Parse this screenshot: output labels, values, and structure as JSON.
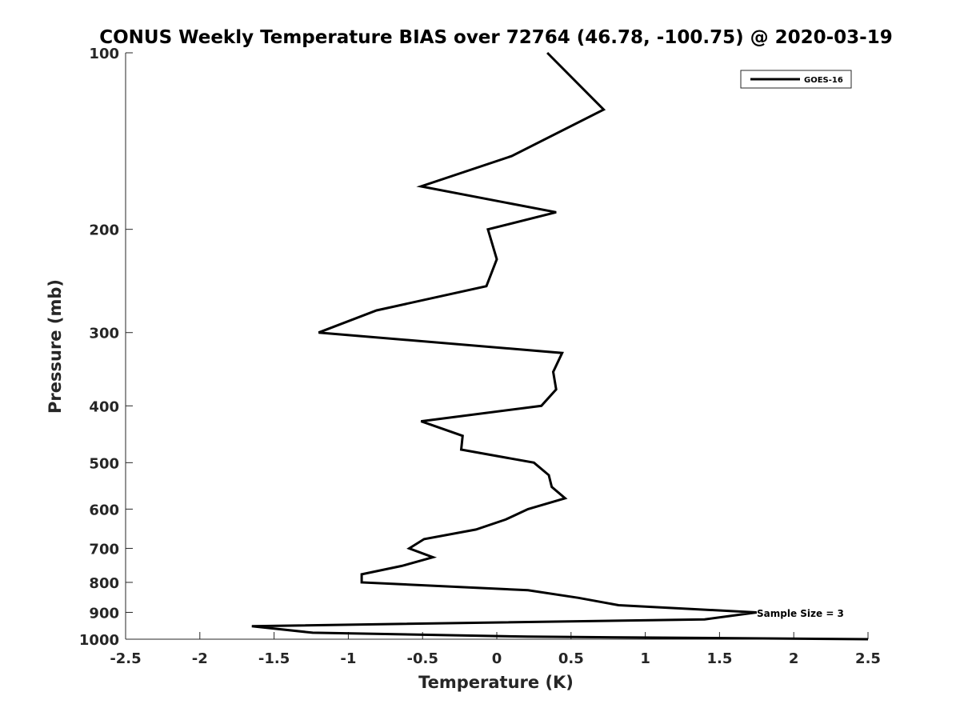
{
  "chart_data": {
    "type": "line",
    "title": "CONUS Weekly Temperature BIAS over 72764 (46.78, -100.75) @ 2020-03-19",
    "xlabel": "Temperature (K)",
    "ylabel": "Pressure (mb)",
    "xlim": [
      -2.5,
      2.5
    ],
    "ylim": [
      100,
      1000
    ],
    "yscale": "log",
    "y_reversed": true,
    "x_ticks": [
      "-2.5",
      "-2",
      "-1.5",
      "-1",
      "-0.5",
      "0",
      "0.5",
      "1",
      "1.5",
      "2",
      "2.5"
    ],
    "y_ticks": [
      "100",
      "200",
      "300",
      "400",
      "500",
      "600",
      "700",
      "800",
      "900",
      "1000"
    ],
    "grid": false,
    "legend_position": "top-right",
    "annotation": "Sample Size = 3",
    "line_color": "#000000",
    "series": [
      {
        "name": "GOES-16",
        "points": [
          [
            0.34,
            100
          ],
          [
            0.72,
            125
          ],
          [
            0.1,
            150
          ],
          [
            -0.51,
            169
          ],
          [
            0.4,
            187
          ],
          [
            -0.06,
            200
          ],
          [
            0.0,
            225
          ],
          [
            -0.07,
            250
          ],
          [
            -0.81,
            275
          ],
          [
            -1.2,
            300
          ],
          [
            0.44,
            325
          ],
          [
            0.38,
            350
          ],
          [
            0.4,
            375
          ],
          [
            0.3,
            400
          ],
          [
            -0.51,
            425
          ],
          [
            -0.23,
            450
          ],
          [
            -0.24,
            475
          ],
          [
            0.25,
            500
          ],
          [
            0.35,
            525
          ],
          [
            0.37,
            550
          ],
          [
            0.46,
            575
          ],
          [
            0.21,
            600
          ],
          [
            0.06,
            625
          ],
          [
            -0.14,
            650
          ],
          [
            -0.49,
            675
          ],
          [
            -0.59,
            700
          ],
          [
            -0.43,
            725
          ],
          [
            -0.64,
            750
          ],
          [
            -0.91,
            775
          ],
          [
            -0.91,
            800
          ],
          [
            0.21,
            825
          ],
          [
            0.55,
            850
          ],
          [
            0.82,
            875
          ],
          [
            1.75,
            900
          ],
          [
            1.4,
            925
          ],
          [
            -1.65,
            950
          ],
          [
            -1.24,
            975
          ],
          [
            0.21,
            990
          ],
          [
            2.5,
            1000
          ]
        ]
      }
    ]
  }
}
